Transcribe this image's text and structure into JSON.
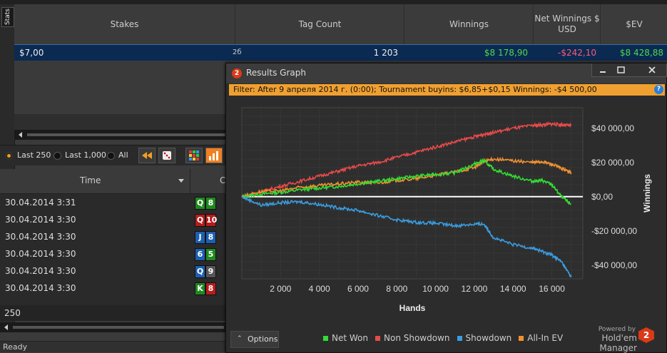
{
  "stats_tab": {
    "label": "Stats"
  },
  "stats_table": {
    "headers": [
      "Stakes",
      "Tag Count",
      "Winnings",
      "Net Winnings $ USD",
      "$EV"
    ],
    "row": {
      "stakes": "$7,00",
      "icon": "2б",
      "count": "1 203",
      "winnings": "$8 178,90",
      "net": "-$242,10",
      "ev": "$8 428,88"
    }
  },
  "filter_bar": {
    "options": [
      "Last 250",
      "Last 1,000",
      "All"
    ],
    "selected": "Last 250"
  },
  "hands_table": {
    "header_time": "Time",
    "header_cards": "C",
    "rows": [
      {
        "time": "30.04.2014 3:31",
        "c1": "Q",
        "c2": "8",
        "col1": "green",
        "col2": "green"
      },
      {
        "time": "30.04.2014 3:30",
        "c1": "Q",
        "c2": "10",
        "col1": "red",
        "col2": "red"
      },
      {
        "time": "30.04.2014 3:30",
        "c1": "J",
        "c2": "8",
        "col1": "blue",
        "col2": "blue"
      },
      {
        "time": "30.04.2014 3:30",
        "c1": "6",
        "c2": "5",
        "col1": "blue",
        "col2": "green"
      },
      {
        "time": "30.04.2014 3:30",
        "c1": "Q",
        "c2": "9",
        "col1": "blue",
        "col2": "gray"
      },
      {
        "time": "30.04.2014 3:30",
        "c1": "K",
        "c2": "8",
        "col1": "green",
        "col2": "red"
      }
    ],
    "count": "250"
  },
  "status": {
    "text": "Ready"
  },
  "window": {
    "title": "Results Graph",
    "logo": "2",
    "filter_text": "Filter: After 9 апреля 2014 г. (0:00); Tournament buyins: $6,85+$0,15 Winnings: -$4 500,00",
    "help": "?",
    "options_label": "Options",
    "powered_by": "Powered by",
    "brand": "Hold'em Manager",
    "brand_logo": "2"
  },
  "colors": {
    "net_won": "#33dd33",
    "non_showdown": "#e84a4a",
    "showdown": "#3a9de0",
    "allin_ev": "#f09030",
    "zero_line": "#ffffff"
  },
  "chart_data": {
    "type": "line",
    "xlabel": "Hands",
    "ylabel": "Winnings",
    "xlim": [
      0,
      17600
    ],
    "ylim": [
      -48000,
      52000
    ],
    "x_ticks": [
      2000,
      4000,
      6000,
      8000,
      10000,
      12000,
      14000,
      16000
    ],
    "x_tick_labels": [
      "2 000",
      "4 000",
      "6 000",
      "8 000",
      "10 000",
      "12 000",
      "14 000",
      "16 000"
    ],
    "y_ticks": [
      40000,
      20000,
      0,
      -20000,
      -40000
    ],
    "y_tick_labels": [
      "$40 000,00",
      "$20 000,00",
      "$0,00",
      "-$20 000,00",
      "-$40 000,00"
    ],
    "x": [
      0,
      1000,
      2000,
      3000,
      4000,
      5000,
      6000,
      7000,
      8000,
      9000,
      10000,
      11000,
      12000,
      12500,
      13000,
      14000,
      15000,
      15500,
      16000,
      16500,
      17000
    ],
    "series": [
      {
        "name": "Net Won",
        "values": [
          0,
          1500,
          2500,
          4000,
          5000,
          6000,
          7500,
          9000,
          10500,
          12000,
          13000,
          14000,
          19000,
          21000,
          16000,
          12000,
          9000,
          9500,
          7000,
          0,
          -4500
        ]
      },
      {
        "name": "Non Showdown",
        "values": [
          0,
          3000,
          6000,
          9000,
          12000,
          15000,
          18000,
          20000,
          23000,
          26000,
          29000,
          32000,
          35000,
          36500,
          37500,
          40000,
          41500,
          42000,
          42500,
          42000,
          41500
        ]
      },
      {
        "name": "Showdown",
        "values": [
          0,
          -5000,
          -3500,
          -3000,
          -4500,
          -6500,
          -8000,
          -11000,
          -13500,
          -15000,
          -15500,
          -17000,
          -16000,
          -16000,
          -24000,
          -28000,
          -30000,
          -32000,
          -34000,
          -38000,
          -47000
        ]
      },
      {
        "name": "All-In EV",
        "values": [
          0,
          3000,
          3500,
          5500,
          6500,
          7500,
          8500,
          8000,
          9500,
          10500,
          12500,
          14500,
          17000,
          20500,
          22000,
          21000,
          20000,
          20500,
          19000,
          16500,
          14000
        ]
      }
    ],
    "legend_position": "bottom-right",
    "grid": true
  }
}
